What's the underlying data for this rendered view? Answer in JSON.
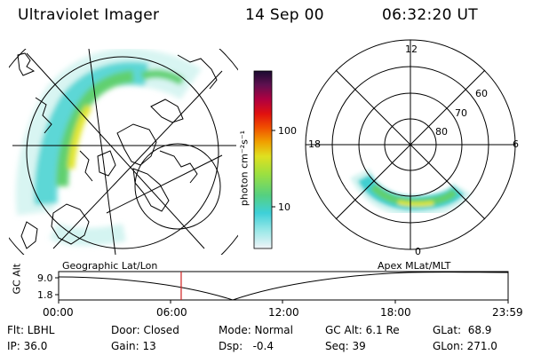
{
  "header": {
    "instrument": "Ultraviolet Imager",
    "date": "14 Sep 00",
    "time": "06:32:20 UT"
  },
  "colorbar": {
    "unit_label": "photon cm⁻²s⁻¹",
    "ticks": [
      "100",
      "10"
    ],
    "colors": [
      "#f0f4f8",
      "#9be8e8",
      "#3ed0d8",
      "#55d080",
      "#9ce040",
      "#e0e020",
      "#f0a000",
      "#f05000",
      "#e01010",
      "#b00040",
      "#601050",
      "#1a0a30"
    ]
  },
  "polar_plot": {
    "mlt_labels": [
      "12",
      "18",
      "6",
      "0"
    ],
    "mlat_labels": [
      "60",
      "70",
      "80"
    ]
  },
  "timeline": {
    "title_left": "Geographic Lat/Lon",
    "title_right": "Apex MLat/MLT",
    "axis_label": "GC Alt",
    "y_ticks": [
      "9.0",
      "1.8"
    ],
    "x_ticks": [
      "00:00",
      "06:00",
      "12:00",
      "18:00",
      "23:59"
    ],
    "marker_color": "#d02020"
  },
  "info": {
    "flt": "Flt: LBHL",
    "door": "Door: Closed",
    "mode": "Mode: Normal",
    "gc_alt": "GC Alt: 6.1 Re",
    "glat": "GLat:  68.9",
    "ip": "IP: 36.0",
    "gain": "Gain: 13",
    "dsp": "Dsp:   -0.4",
    "seq": "Seq: 39",
    "glon": "GLon: 271.0"
  }
}
